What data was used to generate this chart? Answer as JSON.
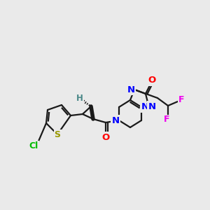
{
  "bg_color": "#eaeaea",
  "fig_size": [
    3.0,
    3.0
  ],
  "dpi": 100,
  "atom_colors": {
    "N": "#0000ff",
    "O": "#ff0000",
    "S": "#999900",
    "Cl": "#00bb00",
    "F": "#ee00ee",
    "C": "#1a1a1a",
    "H": "#4a8888"
  },
  "bond_color": "#1a1a1a",
  "bond_width": 1.6
}
